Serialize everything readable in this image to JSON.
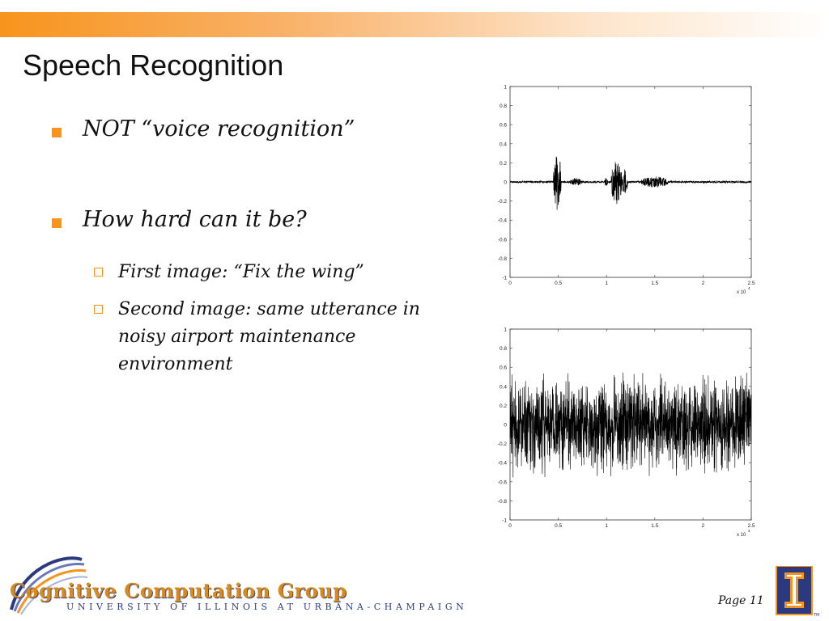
{
  "slide": {
    "title": "Speech Recognition",
    "bullets": [
      {
        "text": "NOT “voice recognition”"
      },
      {
        "text": "How hard can it be?"
      }
    ],
    "sub_bullets": [
      {
        "text": "First image: “Fix the wing”"
      },
      {
        "text": "Second image: same utterance in noisy airport maintenance environment"
      }
    ],
    "page_label": "Page 11"
  },
  "footer": {
    "logo_text": "Cognitive Computation Group",
    "logo_subtext": "UNIVERSITY OF ILLINOIS AT URBANA-CHAMPAIGN",
    "trademark": "TM"
  },
  "colors": {
    "accent": "#f7941d",
    "navy": "#2b3a80"
  },
  "chart_data": [
    {
      "type": "line",
      "description_role": "clean speech waveform",
      "x_ticks": [
        "0",
        "0.5",
        "1",
        "1.5",
        "2",
        "2.5"
      ],
      "y_ticks": [
        "1",
        "0.8",
        "0.6",
        "0.4",
        "0.2",
        "0",
        "-0.2",
        "-0.4",
        "-0.6",
        "-0.8",
        "-1"
      ],
      "x_multiplier": "x 10",
      "x_multiplier_exp": "4",
      "xlim": [
        0,
        2.5
      ],
      "ylim": [
        -1,
        1
      ],
      "bursts": [
        {
          "start": 0.45,
          "end": 0.53,
          "amp": 0.32
        },
        {
          "start": 0.62,
          "end": 0.75,
          "amp": 0.04
        },
        {
          "start": 0.98,
          "end": 1.02,
          "amp": 0.05
        },
        {
          "start": 1.05,
          "end": 1.16,
          "amp": 0.24
        },
        {
          "start": 1.16,
          "end": 1.22,
          "amp": 0.14
        },
        {
          "start": 1.36,
          "end": 1.64,
          "amp": 0.06
        }
      ],
      "baseline_amp": 0.01
    },
    {
      "type": "line",
      "description_role": "noisy speech waveform",
      "x_ticks": [
        "0",
        "0.5",
        "1",
        "1.5",
        "2",
        "2.5"
      ],
      "y_ticks": [
        "1",
        "0.8",
        "0.6",
        "0.4",
        "0.2",
        "0",
        "-0.2",
        "-0.4",
        "-0.6",
        "-0.8",
        "-1"
      ],
      "x_multiplier": "x 10",
      "x_multiplier_exp": "4",
      "xlim": [
        0,
        2.5
      ],
      "ylim": [
        -1,
        1
      ],
      "noise_amp": 0.4
    }
  ]
}
